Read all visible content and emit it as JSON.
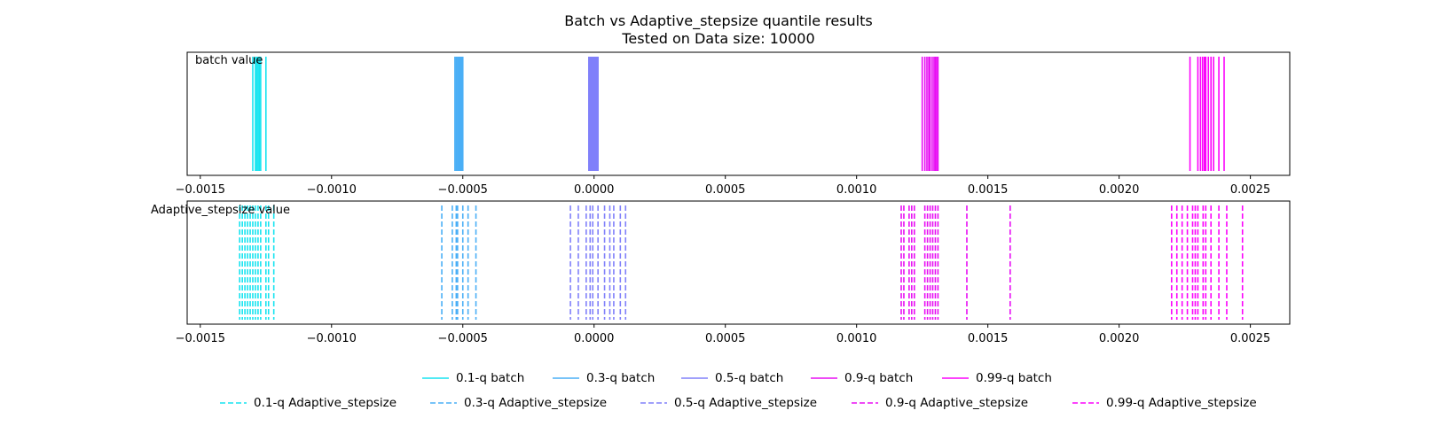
{
  "chart_data": {
    "type": "rug",
    "title": "Batch vs Adaptive_stepsize quantile results",
    "subtitle": "Tested on Data size: 10000",
    "xlim": [
      -0.00155,
      0.00265
    ],
    "xticks": [
      -0.0015,
      -0.001,
      -0.0005,
      0.0,
      0.0005,
      0.001,
      0.0015,
      0.002,
      0.0025
    ],
    "xtick_labels": [
      "−0.0015",
      "−0.0010",
      "−0.0005",
      "0.0000",
      "0.0005",
      "0.0010",
      "0.0015",
      "0.0020",
      "0.0025"
    ],
    "panels": [
      {
        "label": "batch value",
        "line_style": "solid",
        "series": [
          {
            "quantile": "0.1-q",
            "color": "#17e4f0",
            "values": [
              -0.0013,
              -0.00129,
              -0.001285,
              -0.00128,
              -0.001275,
              -0.00127,
              -0.00125
            ]
          },
          {
            "quantile": "0.3-q",
            "color": "#4aaff6",
            "values": [
              -0.00053,
              -0.000525,
              -0.00052,
              -0.000515,
              -0.00051,
              -0.000505,
              -0.0005
            ]
          },
          {
            "quantile": "0.5-q",
            "color": "#8080fa",
            "values": [
              -2e-05,
              -1.5e-05,
              -1e-05,
              -5e-06,
              0.0,
              5e-06,
              1e-05,
              1.5e-05
            ]
          },
          {
            "quantile": "0.9-q",
            "color": "#e80ff4",
            "values": [
              0.00125,
              0.00126,
              0.001268,
              0.001275,
              0.00128,
              0.001288,
              0.001295,
              0.0013,
              0.001305,
              0.00131
            ]
          },
          {
            "quantile": "0.99-q",
            "color": "#fc03fc",
            "values": [
              0.00227,
              0.0023,
              0.00231,
              0.002318,
              0.002325,
              0.00233,
              0.00234,
              0.00235,
              0.00236,
              0.00238,
              0.0024
            ]
          }
        ]
      },
      {
        "label": "Adaptive_stepsize value",
        "line_style": "dashed",
        "series": [
          {
            "quantile": "0.1-q",
            "color": "#17e4f0",
            "values": [
              -0.00135,
              -0.00134,
              -0.00133,
              -0.00132,
              -0.00131,
              -0.0013,
              -0.00129,
              -0.00128,
              -0.00127,
              -0.00125,
              -0.00124,
              -0.00122
            ]
          },
          {
            "quantile": "0.3-q",
            "color": "#4aaff6",
            "values": [
              -0.00058,
              -0.00054,
              -0.000525,
              -0.00052,
              -0.0005,
              -0.00048,
              -0.00045
            ]
          },
          {
            "quantile": "0.5-q",
            "color": "#8080fa",
            "values": [
              -9e-05,
              -6e-05,
              -3e-05,
              -1.5e-05,
              -5e-06,
              1.5e-05,
              4e-05,
              6e-05,
              7.5e-05,
              0.0001,
              0.00012
            ]
          },
          {
            "quantile": "0.9-q",
            "color": "#e80ff4",
            "values": [
              0.00117,
              0.00118,
              0.0012,
              0.00121,
              0.00122,
              0.00126,
              0.00127,
              0.00128,
              0.00129,
              0.0013,
              0.00131,
              0.00142,
              0.001585
            ]
          },
          {
            "quantile": "0.99-q",
            "color": "#fc03fc",
            "values": [
              0.0022,
              0.00222,
              0.00224,
              0.00226,
              0.00228,
              0.00229,
              0.0023,
              0.00232,
              0.00233,
              0.00235,
              0.00238,
              0.00241,
              0.00247
            ]
          }
        ]
      }
    ],
    "legend": {
      "placement": "bottom",
      "rows": [
        [
          {
            "label": "0.1-q batch",
            "color": "#17e4f0",
            "style": "solid"
          },
          {
            "label": "0.3-q batch",
            "color": "#4aaff6",
            "style": "solid"
          },
          {
            "label": "0.5-q batch",
            "color": "#8080fa",
            "style": "solid"
          },
          {
            "label": "0.9-q batch",
            "color": "#e80ff4",
            "style": "solid"
          },
          {
            "label": "0.99-q batch",
            "color": "#fc03fc",
            "style": "solid"
          }
        ],
        [
          {
            "label": "0.1-q Adaptive_stepsize",
            "color": "#17e4f0",
            "style": "dashed"
          },
          {
            "label": "0.3-q Adaptive_stepsize",
            "color": "#4aaff6",
            "style": "dashed"
          },
          {
            "label": "0.5-q Adaptive_stepsize",
            "color": "#8080fa",
            "style": "dashed"
          },
          {
            "label": "0.9-q Adaptive_stepsize",
            "color": "#e80ff4",
            "style": "dashed"
          },
          {
            "label": "0.99-q Adaptive_stepsize",
            "color": "#fc03fc",
            "style": "dashed"
          }
        ]
      ]
    }
  }
}
